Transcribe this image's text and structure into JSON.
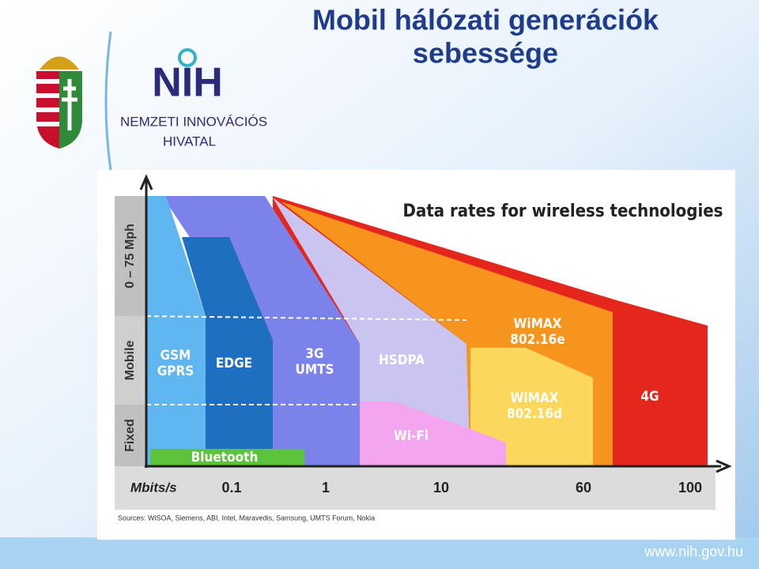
{
  "slide": {
    "title_lines": [
      "Mobil hálózati generációk",
      "sebessége"
    ],
    "logo": {
      "mark": "NIH",
      "name_lines": [
        "NEMZETI INNOVÁCIÓS",
        "HIVATAL"
      ]
    },
    "footer": "www.nih.gov.hu"
  },
  "diagram": {
    "title": "Data rates for wireless technologies",
    "y_sections": [
      "0 – 75 Mph",
      "Mobile",
      "Fixed"
    ],
    "x_unit": "Mbits/s",
    "x_labels": [
      "0.1",
      "1",
      "10",
      "60",
      "100"
    ],
    "regions": [
      {
        "lines": [
          "4G"
        ]
      },
      {
        "lines": [
          "WiMAX",
          "802.16e"
        ]
      },
      {
        "lines": [
          "WiMAX",
          "802.16d"
        ]
      },
      {
        "lines": [
          "HSDPA"
        ]
      },
      {
        "lines": [
          "Wi-Fi"
        ]
      },
      {
        "lines": [
          "3G",
          "UMTS"
        ]
      },
      {
        "lines": [
          "EDGE"
        ]
      },
      {
        "lines": [
          "GSM",
          "GPRS"
        ]
      },
      {
        "lines": [
          "Bluetooth"
        ]
      }
    ],
    "sources": "Sources: WiSOA, Siemens, ABI, Intel, Maravedis, Samsung, UMTS Forum, Nokia"
  }
}
